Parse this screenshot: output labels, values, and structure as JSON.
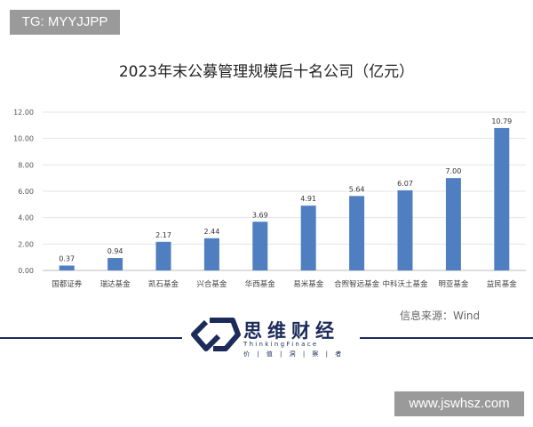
{
  "watermark_top": "TG: MYYJJPP",
  "watermark_bottom": "www.jswhsz.com",
  "source": "信息来源：Wind",
  "brand": {
    "name": "思维财经",
    "english": "ThinkingFinace",
    "tagline": "价 | 值 | 洞 | 察 | 者"
  },
  "chart_data": {
    "type": "bar",
    "title": "2023年末公募管理规模后十名公司（亿元）",
    "categories": [
      "国都证券",
      "瑞达基金",
      "凯石基金",
      "兴合基金",
      "华西基金",
      "易米基金",
      "合煦智远基金",
      "中科沃土基金",
      "明亚基金",
      "益民基金"
    ],
    "values": [
      0.37,
      0.94,
      2.17,
      2.44,
      3.69,
      4.91,
      5.64,
      6.07,
      7.0,
      10.79
    ],
    "data_labels": [
      "0.37",
      "0.94",
      "2.17",
      "2.44",
      "3.69",
      "4.91",
      "5.64",
      "6.07",
      "7.00",
      "10.79"
    ],
    "yticks": [
      "0.00",
      "2.00",
      "4.00",
      "6.00",
      "8.00",
      "10.00",
      "12.00"
    ],
    "ylim": [
      0,
      12
    ],
    "grid": true,
    "bar_color": "#4f7fc1"
  }
}
